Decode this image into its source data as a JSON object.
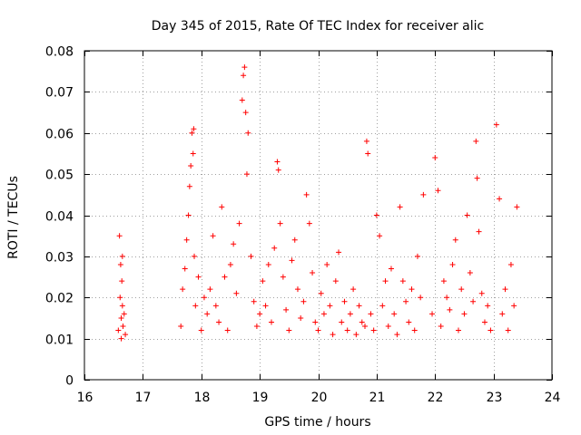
{
  "chart_data": {
    "type": "scatter",
    "title": "Day 345 of 2015, Rate Of TEC Index for receiver alic",
    "xlabel": "GPS time / hours",
    "ylabel": "ROTI / TECUs",
    "xlim": [
      16,
      24
    ],
    "ylim": [
      0,
      0.08
    ],
    "xticks": [
      16,
      17,
      18,
      19,
      20,
      21,
      22,
      23,
      24
    ],
    "xtick_labels": [
      "16",
      "17",
      "18",
      "19",
      "20",
      "21",
      "22",
      "23",
      "24"
    ],
    "yticks": [
      0,
      0.01,
      0.02,
      0.03,
      0.04,
      0.05,
      0.06,
      0.07,
      0.08
    ],
    "ytick_labels": [
      "0",
      "0.01",
      "0.02",
      "0.03",
      "0.04",
      "0.05",
      "0.06",
      "0.07",
      "0.08"
    ],
    "grid": true,
    "marker": "+",
    "color": "#ff0000",
    "series": [
      {
        "name": "ROTI",
        "x": [
          16.58,
          16.6,
          16.61,
          16.62,
          16.63,
          16.63,
          16.64,
          16.65,
          16.65,
          16.66,
          16.68,
          16.7,
          17.65,
          17.68,
          17.72,
          17.75,
          17.78,
          17.8,
          17.82,
          17.84,
          17.86,
          17.87,
          17.88,
          17.9,
          17.95,
          18.0,
          18.05,
          18.1,
          18.15,
          18.2,
          18.25,
          18.3,
          18.35,
          18.4,
          18.45,
          18.5,
          18.55,
          18.6,
          18.65,
          18.7,
          18.72,
          18.74,
          18.76,
          18.78,
          18.8,
          18.85,
          18.9,
          18.95,
          19.0,
          19.05,
          19.1,
          19.15,
          19.2,
          19.25,
          19.3,
          19.32,
          19.35,
          19.4,
          19.45,
          19.5,
          19.55,
          19.6,
          19.65,
          19.7,
          19.75,
          19.8,
          19.85,
          19.9,
          19.95,
          20.0,
          20.05,
          20.1,
          20.15,
          20.2,
          20.25,
          20.3,
          20.35,
          20.4,
          20.45,
          20.5,
          20.55,
          20.6,
          20.65,
          20.7,
          20.75,
          20.8,
          20.83,
          20.85,
          20.9,
          20.95,
          21.0,
          21.05,
          21.1,
          21.15,
          21.2,
          21.25,
          21.3,
          21.35,
          21.4,
          21.45,
          21.5,
          21.55,
          21.6,
          21.65,
          21.7,
          21.75,
          21.8,
          21.95,
          22.0,
          22.05,
          22.1,
          22.15,
          22.2,
          22.25,
          22.3,
          22.35,
          22.4,
          22.45,
          22.5,
          22.55,
          22.6,
          22.65,
          22.7,
          22.72,
          22.75,
          22.8,
          22.85,
          22.9,
          22.95,
          23.05,
          23.1,
          23.15,
          23.2,
          23.25,
          23.3,
          23.35,
          23.4
        ],
        "y": [
          0.012,
          0.035,
          0.02,
          0.028,
          0.015,
          0.01,
          0.024,
          0.018,
          0.03,
          0.013,
          0.016,
          0.011,
          0.013,
          0.022,
          0.027,
          0.034,
          0.04,
          0.047,
          0.052,
          0.06,
          0.055,
          0.061,
          0.03,
          0.018,
          0.025,
          0.012,
          0.02,
          0.016,
          0.022,
          0.035,
          0.018,
          0.014,
          0.042,
          0.025,
          0.012,
          0.028,
          0.033,
          0.021,
          0.038,
          0.068,
          0.074,
          0.076,
          0.065,
          0.05,
          0.06,
          0.03,
          0.019,
          0.013,
          0.016,
          0.024,
          0.018,
          0.028,
          0.014,
          0.032,
          0.053,
          0.051,
          0.038,
          0.025,
          0.017,
          0.012,
          0.029,
          0.034,
          0.022,
          0.015,
          0.019,
          0.045,
          0.038,
          0.026,
          0.014,
          0.012,
          0.021,
          0.016,
          0.028,
          0.018,
          0.011,
          0.024,
          0.031,
          0.014,
          0.019,
          0.012,
          0.016,
          0.022,
          0.011,
          0.018,
          0.014,
          0.013,
          0.058,
          0.055,
          0.016,
          0.012,
          0.04,
          0.035,
          0.018,
          0.024,
          0.013,
          0.027,
          0.016,
          0.011,
          0.042,
          0.024,
          0.019,
          0.014,
          0.022,
          0.012,
          0.03,
          0.02,
          0.045,
          0.016,
          0.054,
          0.046,
          0.013,
          0.024,
          0.02,
          0.017,
          0.028,
          0.034,
          0.012,
          0.022,
          0.016,
          0.04,
          0.026,
          0.019,
          0.058,
          0.049,
          0.036,
          0.021,
          0.014,
          0.018,
          0.012,
          0.062,
          0.044,
          0.016,
          0.022,
          0.012,
          0.028,
          0.018,
          0.042
        ]
      }
    ]
  }
}
